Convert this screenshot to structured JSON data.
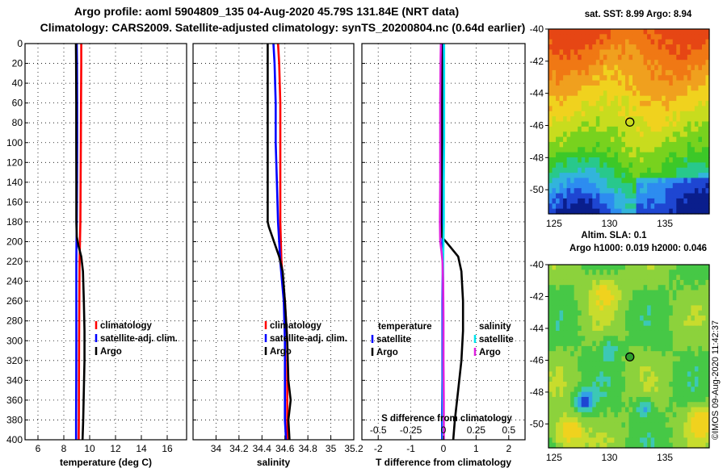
{
  "header": {
    "line1": "Argo profile: aoml 5904809_135 04-Aug-2020 45.79S 131.84E (NRT data)",
    "line2": "Climatology: CARS2009. Satellite-adjusted climatology: synTS_20200804.nc (0.64d earlier)"
  },
  "maps": {
    "sst_title": "sat. SST: 8.99 Argo: 8.94",
    "sla_title1": "Altim. SLA: 0.1",
    "sla_title2": "Argo h1000: 0.019 h2000: 0.046",
    "lat_ticks": [
      -40,
      -42,
      -44,
      -46,
      -48,
      -50
    ],
    "lon_ticks": [
      125,
      130,
      135
    ],
    "lat_range": [
      -51.5,
      -40
    ],
    "lon_range": [
      124.5,
      139
    ],
    "argo_lon": 131.84,
    "argo_lat": -45.79,
    "sst_palette": [
      "#0a1e8c",
      "#1e46d2",
      "#2d8cf0",
      "#32b4dc",
      "#28c88c",
      "#3cc828",
      "#78d21e",
      "#c8dc1e",
      "#f0d21e",
      "#f0a01e",
      "#f07814",
      "#e64614"
    ],
    "sla_palette": [
      "#1e46d2",
      "#32a0e6",
      "#3cc8b4",
      "#46c846",
      "#8cd23c",
      "#c8dc2d",
      "#f0d21e",
      "#f0a01e",
      "#e66414"
    ]
  },
  "watermark": "©IMOS 09-Aug-2020 11:42:37",
  "colors": {
    "climatology": "#ff0000",
    "satellite": "#0000ff",
    "argo": "#000000",
    "sal_satellite": "#00e5ee",
    "sal_argo": "#e020e0"
  },
  "chart_data": [
    {
      "type": "line",
      "name": "temperature",
      "xlabel": "temperature (deg C)",
      "ylabel": "",
      "xlim": [
        5,
        17.5
      ],
      "ylim": [
        400,
        0
      ],
      "xticks": [
        6,
        8,
        10,
        12,
        14,
        16
      ],
      "yticks": [
        0,
        20,
        40,
        60,
        80,
        100,
        120,
        140,
        160,
        180,
        200,
        220,
        240,
        260,
        280,
        300,
        320,
        340,
        360,
        380,
        400
      ],
      "legend": [
        "climatology",
        "satellite-adj. clim.",
        "Argo"
      ],
      "series": [
        {
          "name": "climatology",
          "color": "#ff0000",
          "depth": [
            0,
            20,
            60,
            100,
            140,
            180,
            200,
            220,
            260,
            300,
            340,
            380,
            400
          ],
          "values": [
            9.35,
            9.35,
            9.33,
            9.32,
            9.3,
            9.28,
            9.25,
            9.22,
            9.2,
            9.18,
            9.17,
            9.16,
            9.15
          ]
        },
        {
          "name": "satellite-adj. clim.",
          "color": "#0000ff",
          "depth": [
            0,
            20,
            60,
            100,
            140,
            180,
            200,
            220,
            260,
            300,
            340,
            380,
            400
          ],
          "values": [
            9.0,
            9.02,
            9.03,
            9.03,
            9.02,
            9.0,
            8.98,
            8.97,
            8.97,
            8.97,
            8.96,
            8.95,
            8.95
          ]
        },
        {
          "name": "Argo",
          "color": "#000000",
          "depth": [
            0,
            20,
            60,
            100,
            140,
            180,
            195,
            205,
            215,
            230,
            260,
            290,
            320,
            350,
            380,
            400
          ],
          "values": [
            8.94,
            8.95,
            8.96,
            8.96,
            8.97,
            8.97,
            9.0,
            9.15,
            9.35,
            9.48,
            9.55,
            9.6,
            9.6,
            9.55,
            9.5,
            9.45
          ]
        }
      ]
    },
    {
      "type": "line",
      "name": "salinity",
      "xlabel": "salinity",
      "ylabel": "",
      "xlim": [
        33.8,
        35.2
      ],
      "ylim": [
        400,
        0
      ],
      "xticks": [
        34,
        34.2,
        34.4,
        34.6,
        34.8,
        35,
        35.2
      ],
      "legend": [
        "climatology",
        "satellite-adj. clim.",
        "Argo"
      ],
      "series": [
        {
          "name": "climatology",
          "color": "#ff0000",
          "depth": [
            0,
            20,
            60,
            100,
            140,
            180,
            220,
            260,
            300,
            340,
            380,
            400
          ],
          "values": [
            34.54,
            34.55,
            34.56,
            34.56,
            34.56,
            34.56,
            34.57,
            34.6,
            34.62,
            34.62,
            34.62,
            34.62
          ]
        },
        {
          "name": "satellite-adj. clim.",
          "color": "#0000ff",
          "depth": [
            0,
            20,
            60,
            100,
            140,
            180,
            220,
            260,
            300,
            340,
            380,
            400
          ],
          "values": [
            34.5,
            34.51,
            34.52,
            34.52,
            34.53,
            34.54,
            34.56,
            34.59,
            34.6,
            34.6,
            34.6,
            34.61
          ]
        },
        {
          "name": "Argo",
          "color": "#000000",
          "depth": [
            0,
            20,
            60,
            100,
            140,
            180,
            185,
            195,
            205,
            215,
            230,
            260,
            300,
            340,
            360,
            380,
            400
          ],
          "values": [
            34.45,
            34.45,
            34.45,
            34.45,
            34.45,
            34.45,
            34.46,
            34.49,
            34.52,
            34.55,
            34.58,
            34.6,
            34.62,
            34.63,
            34.65,
            34.63,
            34.64
          ]
        }
      ]
    },
    {
      "type": "line",
      "name": "difference",
      "xlabel": "T difference from climatology",
      "top_label": "S difference from climatology",
      "xlim": [
        -2.5,
        2.5
      ],
      "ylim": [
        400,
        0
      ],
      "xticks": [
        -2,
        -1,
        0,
        1,
        2
      ],
      "top_ticks": [
        -0.5,
        -0.25,
        0,
        0.25,
        0.5
      ],
      "legend_temperature": [
        "satellite",
        "Argo"
      ],
      "legend_salinity": [
        "satellite",
        "Argo"
      ],
      "legend_temperature_title": "temperature",
      "legend_salinity_title": "salinity",
      "series": [
        {
          "name": "temperature satellite",
          "color": "#0000ff",
          "depth": [
            0,
            20,
            60,
            100,
            140,
            180,
            200,
            220,
            260,
            300,
            340,
            380,
            400
          ],
          "values": [
            -0.04,
            -0.03,
            -0.02,
            -0.01,
            -0.02,
            -0.02,
            -0.03,
            -0.02,
            -0.03,
            -0.03,
            -0.03,
            -0.04,
            -0.04
          ]
        },
        {
          "name": "temperature Argo",
          "color": "#000000",
          "depth": [
            0,
            20,
            60,
            100,
            140,
            180,
            195,
            205,
            215,
            230,
            260,
            290,
            320,
            350,
            380,
            400
          ],
          "values": [
            -0.06,
            -0.05,
            -0.05,
            -0.05,
            -0.06,
            -0.07,
            -0.05,
            0.2,
            0.45,
            0.55,
            0.6,
            0.6,
            0.55,
            0.45,
            0.35,
            0.3
          ]
        },
        {
          "name": "salinity satellite",
          "color": "#00e5ee",
          "depth": [
            0,
            20,
            60,
            100,
            140,
            180,
            200,
            220,
            260,
            300,
            340,
            380,
            400
          ],
          "values": [
            0.02,
            0.02,
            0.02,
            0.02,
            0.01,
            0.01,
            0.0,
            -0.01,
            -0.01,
            -0.01,
            -0.01,
            -0.01,
            -0.01
          ]
        },
        {
          "name": "salinity Argo",
          "color": "#e020e0",
          "depth": [
            0,
            20,
            60,
            100,
            140,
            180,
            200,
            210,
            220,
            240,
            280,
            320,
            360,
            400
          ],
          "values": [
            -0.08,
            -0.09,
            -0.1,
            -0.1,
            -0.1,
            -0.11,
            -0.1,
            -0.06,
            -0.03,
            -0.01,
            0.0,
            0.0,
            0.01,
            0.01
          ]
        }
      ]
    }
  ]
}
